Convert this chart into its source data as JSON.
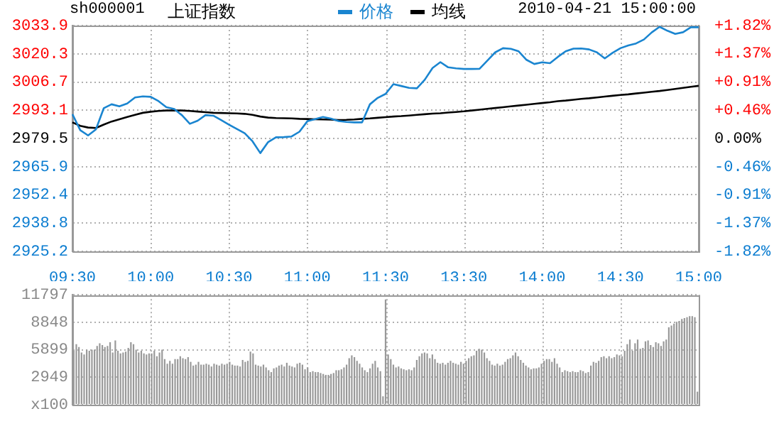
{
  "chart_data": [
    {
      "type": "line",
      "title": "上证指数",
      "annotations": [
        "sh000001",
        "2010-04-21 15:00:00"
      ],
      "legend": "top",
      "grid": true,
      "categories": [
        "09:30",
        null,
        null,
        null,
        null,
        null,
        null,
        null,
        null,
        null,
        "10:00",
        null,
        null,
        null,
        null,
        null,
        null,
        null,
        null,
        null,
        "10:30",
        null,
        null,
        null,
        null,
        null,
        null,
        null,
        null,
        null,
        "11:00",
        null,
        null,
        null,
        null,
        null,
        null,
        null,
        null,
        null,
        "11:30",
        null,
        null,
        null,
        null,
        null,
        null,
        null,
        null,
        null,
        "13:30",
        null,
        null,
        null,
        null,
        null,
        null,
        null,
        null,
        null,
        "14:00",
        null,
        null,
        null,
        null,
        null,
        null,
        null,
        null,
        null,
        "14:30",
        null,
        null,
        null,
        null,
        null,
        null,
        null,
        null,
        null,
        "15:00"
      ],
      "ylim": [
        2925.2,
        3033.9
      ],
      "yticks": [
        2925.2,
        2938.8,
        2952.4,
        2965.9,
        2979.5,
        2993.1,
        3006.7,
        3020.3,
        3033.9
      ],
      "y2lim": [
        -1.82,
        1.82
      ],
      "y2ticks": [
        {
          "value": -1.82,
          "label": "-1.82%"
        },
        {
          "value": -1.37,
          "label": "-1.37%"
        },
        {
          "value": -0.91,
          "label": "-0.91%"
        },
        {
          "value": -0.46,
          "label": "-0.46%"
        },
        {
          "value": 0,
          "label": "0.00%"
        },
        {
          "value": 0.46,
          "label": "+0.46%"
        },
        {
          "value": 0.91,
          "label": "+0.91%"
        },
        {
          "value": 1.37,
          "label": "+1.37%"
        },
        {
          "value": 1.82,
          "label": "+1.82%"
        }
      ],
      "series": [
        {
          "name": "价格",
          "color": "#1a85d0",
          "values": [
            2991.2,
            2983.5,
            2981.0,
            2983.9,
            2994.1,
            2996.0,
            2995.0,
            2996.4,
            2999.3,
            2999.8,
            2999.6,
            2997.5,
            2994.6,
            2993.7,
            2990.7,
            2986.6,
            2988.1,
            2990.8,
            2990.5,
            2988.4,
            2986.2,
            2984.1,
            2982.1,
            2978.2,
            2972.5,
            2977.8,
            2980.1,
            2980.2,
            2980.5,
            2982.8,
            2987.8,
            2988.9,
            2989.9,
            2989.1,
            2987.9,
            2987.5,
            2987.3,
            2987.3,
            2996.0,
            2999.1,
            3001.0,
            3005.7,
            3004.8,
            3003.9,
            3003.7,
            3007.8,
            3013.5,
            3016.3,
            3013.8,
            3013.3,
            3013.0,
            3013.0,
            3013.1,
            3017.0,
            3021.0,
            3023.0,
            3022.7,
            3021.5,
            3017.4,
            3015.4,
            3016.2,
            3015.8,
            3018.8,
            3021.5,
            3022.8,
            3022.9,
            3022.4,
            3021.0,
            3018.1,
            3020.8,
            3023.0,
            3024.3,
            3025.3,
            3027.2,
            3030.6,
            3033.3,
            3031.4,
            3029.9,
            3030.7,
            3033.1,
            3033.1
          ]
        },
        {
          "name": "均线",
          "color": "#000000",
          "values": [
            2987.3,
            2985.6,
            2984.8,
            2984.6,
            2986.2,
            2987.7,
            2988.8,
            2989.9,
            2990.9,
            2991.9,
            2992.4,
            2992.8,
            2993.0,
            2993.0,
            2993.0,
            2992.8,
            2992.5,
            2992.2,
            2991.9,
            2991.8,
            2991.7,
            2991.6,
            2991.4,
            2990.9,
            2990.1,
            2989.6,
            2989.4,
            2989.3,
            2989.2,
            2989.0,
            2988.9,
            2988.8,
            2988.7,
            2988.6,
            2988.4,
            2988.5,
            2988.7,
            2989.0,
            2989.2,
            2989.5,
            2989.8,
            2990.1,
            2990.3,
            2990.6,
            2990.9,
            2991.2,
            2991.5,
            2991.7,
            2992.0,
            2992.3,
            2992.6,
            2993.0,
            2993.4,
            2993.8,
            2994.2,
            2994.6,
            2995.0,
            2995.4,
            2995.8,
            2996.2,
            2996.6,
            2997.0,
            2997.5,
            2997.8,
            2998.2,
            2998.6,
            2998.9,
            2999.3,
            2999.7,
            3000.1,
            3000.5,
            3000.8,
            3001.2,
            3001.6,
            3002.0,
            3002.4,
            3002.9,
            3003.4,
            3003.9,
            3004.4,
            3004.9
          ]
        }
      ]
    },
    {
      "type": "bar",
      "grid": true,
      "tick_labels": "y",
      "color": "#999999",
      "ylim": [
        0,
        11797
      ],
      "yticks": [
        {
          "value": 0,
          "label": "x100"
        },
        2949,
        5899,
        8848,
        11797
      ],
      "categories": [
        null,
        null,
        null,
        null,
        null,
        null,
        null,
        null,
        null,
        null,
        null,
        null,
        null,
        null,
        null,
        null,
        null,
        null,
        null,
        null,
        null,
        null,
        null,
        null,
        null,
        null,
        null,
        null,
        null,
        null,
        null,
        null,
        null,
        null,
        null,
        null,
        null,
        null,
        null,
        null,
        null,
        null,
        null,
        null,
        null,
        null,
        null,
        null,
        null,
        null,
        null,
        null,
        null,
        null,
        null,
        null,
        null,
        null,
        null,
        null,
        null,
        null,
        null,
        null,
        null,
        null,
        null,
        null,
        null,
        null,
        null,
        null,
        null,
        null,
        null,
        null,
        null,
        null,
        null,
        null,
        null,
        null,
        null,
        null,
        null,
        null,
        null,
        null,
        null,
        null,
        null,
        null,
        null,
        null,
        null,
        null,
        null,
        null,
        null,
        null,
        null,
        null,
        null,
        null,
        null,
        null,
        null,
        null,
        null,
        null,
        null,
        null,
        null,
        null,
        null,
        null,
        null,
        null,
        null,
        null,
        null,
        null,
        null,
        null,
        null,
        null,
        null,
        null,
        null,
        null,
        null,
        null,
        null,
        null,
        null,
        null,
        null,
        null,
        null,
        null,
        null,
        null,
        null,
        null,
        null,
        null,
        null,
        null,
        null,
        null,
        null,
        null,
        null,
        null,
        null,
        null,
        null,
        null,
        null,
        null,
        null,
        null,
        null,
        null,
        null,
        null,
        null,
        null,
        null,
        null,
        null,
        null,
        null,
        null,
        null,
        null,
        null,
        null,
        null,
        null,
        null,
        null,
        null,
        null,
        null,
        null,
        null,
        null,
        null,
        null,
        null,
        null,
        null,
        null,
        null,
        null,
        null,
        null,
        null,
        null,
        null,
        null,
        null,
        null,
        null,
        null,
        null,
        null,
        null,
        null,
        null,
        null,
        null,
        null,
        null,
        null,
        null,
        null,
        null,
        null,
        null,
        null,
        null,
        null,
        null,
        null,
        null,
        null,
        null,
        null,
        null,
        null,
        null,
        null,
        null,
        null,
        null,
        null,
        null,
        null,
        null
      ],
      "values": [
        5800,
        6500,
        6200,
        5600,
        5400,
        5900,
        5800,
        5900,
        5900,
        6300,
        6600,
        6400,
        6200,
        6300,
        6700,
        5600,
        6900,
        5800,
        5500,
        5600,
        5700,
        6100,
        6700,
        6500,
        5900,
        5600,
        5800,
        5500,
        5400,
        5500,
        5500,
        5800,
        5200,
        5600,
        5900,
        4900,
        4400,
        4700,
        4400,
        4900,
        4900,
        5200,
        5000,
        4900,
        5100,
        4600,
        4200,
        4300,
        4600,
        4300,
        4300,
        4400,
        4300,
        4100,
        4400,
        4300,
        4200,
        4400,
        4300,
        4400,
        4600,
        4300,
        4200,
        4200,
        4100,
        4800,
        4600,
        4700,
        5700,
        5500,
        4300,
        4200,
        4100,
        4300,
        4000,
        3700,
        3500,
        3900,
        4000,
        4200,
        4300,
        4100,
        4500,
        4200,
        4100,
        4000,
        4400,
        4500,
        4300,
        3800,
        4000,
        3500,
        3600,
        3500,
        3500,
        3400,
        3300,
        3200,
        3200,
        3300,
        3400,
        3700,
        3700,
        3800,
        4000,
        4300,
        5000,
        5300,
        5100,
        4700,
        4400,
        4000,
        3700,
        3500,
        3900,
        4400,
        4700,
        4000,
        3600,
        900,
        11300,
        5400,
        4900,
        4300,
        4000,
        4100,
        3900,
        3800,
        3700,
        3800,
        3700,
        4000,
        4800,
        5200,
        5500,
        5600,
        5500,
        5000,
        5400,
        4900,
        4500,
        4400,
        4500,
        4300,
        4500,
        4700,
        4500,
        4400,
        4300,
        4600,
        4400,
        4700,
        5000,
        5200,
        5300,
        5800,
        6000,
        5900,
        5600,
        5000,
        4700,
        4300,
        4200,
        4400,
        4200,
        4300,
        4600,
        4900,
        5000,
        5300,
        5600,
        5200,
        4800,
        4500,
        4200,
        4000,
        3800,
        3900,
        3900,
        4000,
        4400,
        4700,
        4900,
        4900,
        4600,
        5000,
        4400,
        4000,
        3500,
        3700,
        3600,
        3500,
        3600,
        3500,
        3500,
        3700,
        3600,
        3400,
        3500,
        4200,
        4600,
        4500,
        4700,
        5100,
        5200,
        5000,
        5200,
        5000,
        5100,
        5400,
        5300,
        5200,
        5800,
        6500,
        7000,
        5800,
        6600,
        7000,
        6000,
        6100,
        6800,
        6900,
        6400,
        6200,
        6700,
        6600,
        6300,
        6800,
        7000,
        8300,
        8500,
        8700,
        8900,
        9000,
        9200,
        9300,
        9400,
        9500,
        9500,
        9400,
        1400
      ]
    }
  ]
}
